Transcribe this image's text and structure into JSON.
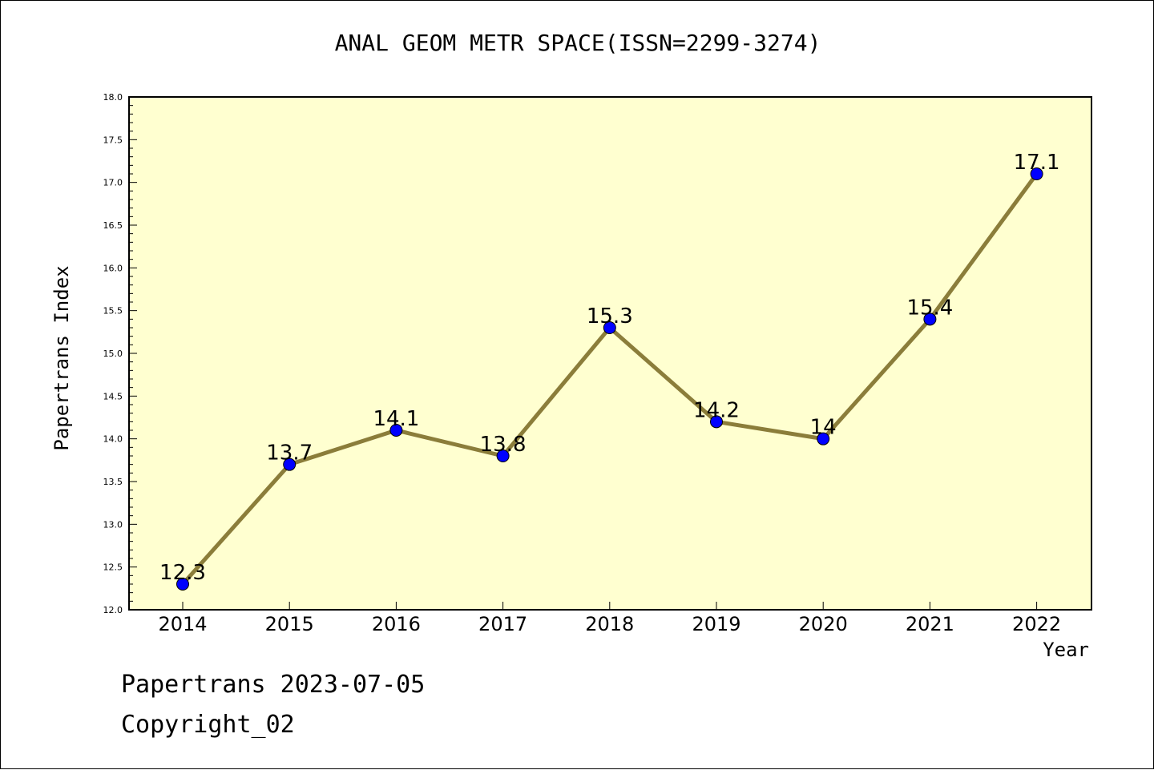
{
  "chart_data": {
    "type": "line",
    "title": "ANAL GEOM METR SPACE(ISSN=2299-3274)",
    "xlabel": "Year",
    "ylabel": "Papertrans Index",
    "categories": [
      "2014",
      "2015",
      "2016",
      "2017",
      "2018",
      "2019",
      "2020",
      "2021",
      "2022"
    ],
    "series": [
      {
        "values": [
          12.3,
          13.7,
          14.1,
          13.8,
          15.3,
          14.2,
          14.0,
          15.4,
          17.1
        ],
        "labels": [
          "12.3",
          "13.7",
          "14.1",
          "13.8",
          "15.3",
          "14.2",
          "14",
          "15.4",
          "17.1"
        ]
      }
    ],
    "ylim": [
      12.0,
      18.0
    ],
    "yticks": [
      "12.0",
      "12.5",
      "13.0",
      "13.5",
      "14.0",
      "14.5",
      "15.0",
      "15.5",
      "16.0",
      "16.5",
      "17.0",
      "17.5",
      "18.0"
    ],
    "grid": false,
    "colors": {
      "plot_bg": "#ffffd0",
      "line": "#8b7d3a",
      "marker": "#0000ff"
    }
  },
  "footer": {
    "line1": "Papertrans 2023-07-05",
    "line2": "Copyright_02"
  }
}
